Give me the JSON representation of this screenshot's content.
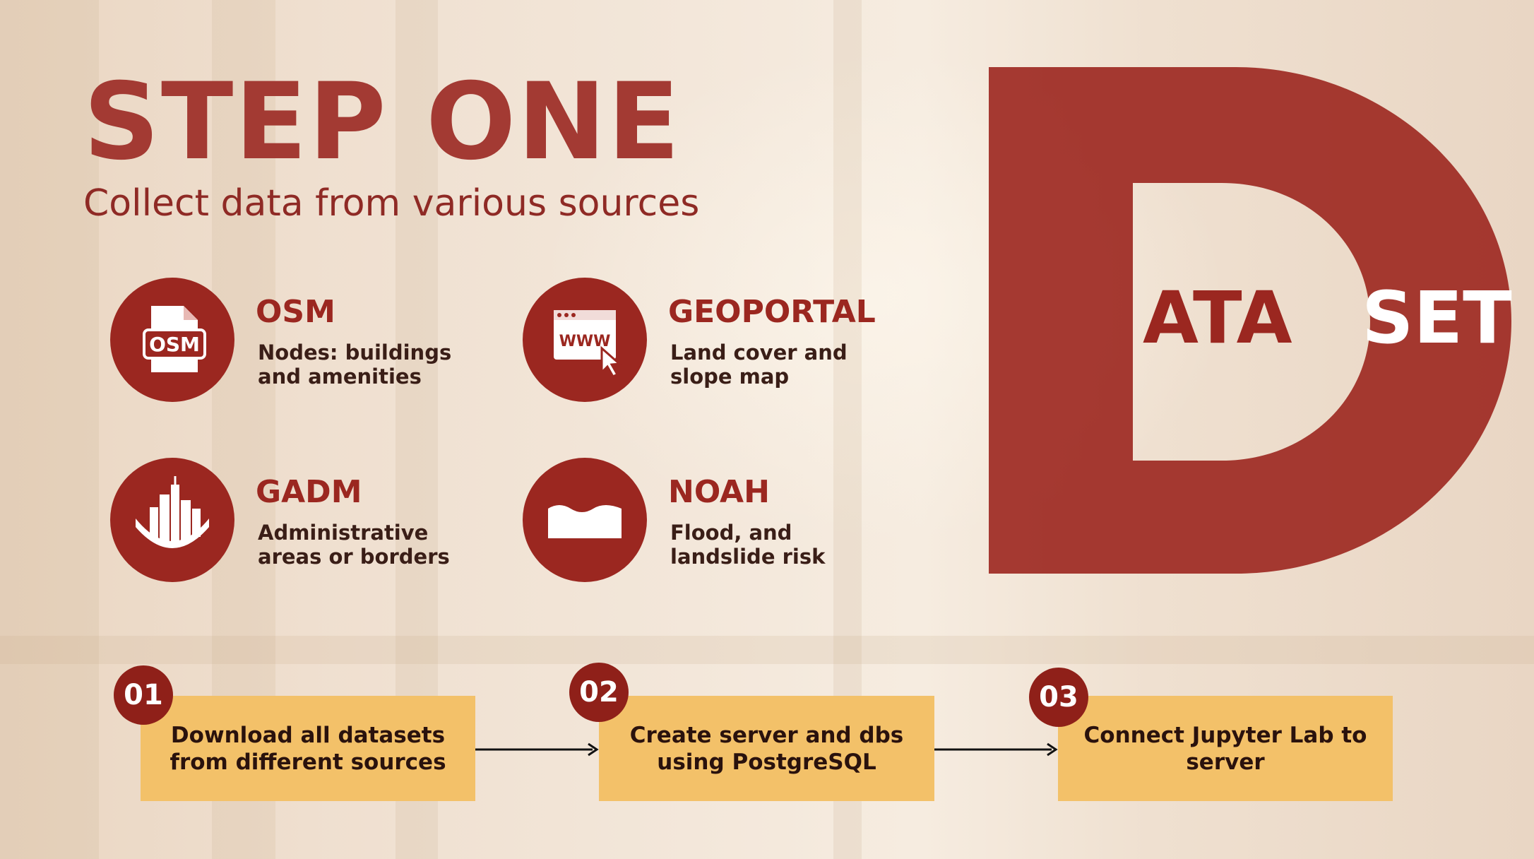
{
  "heading": {
    "title": "STEP ONE",
    "subtitle": "Collect data from various sources"
  },
  "sources": [
    {
      "name": "OSM",
      "description": "Nodes: buildings\nand amenities",
      "icon": "osm-file-icon",
      "icon_text": "OSM"
    },
    {
      "name": "GEOPORTAL",
      "description": "Land cover and\nslope map",
      "icon": "web-browser-cursor-icon",
      "icon_text": "WWW"
    },
    {
      "name": "GADM",
      "description": "Administrative\nareas or borders",
      "icon": "city-skyline-icon"
    },
    {
      "name": "NOAH",
      "description": "Flood, and\nlandslide risk",
      "icon": "wave-flood-icon"
    }
  ],
  "dataset_graphic": {
    "big_letter": "D",
    "left_word": "ATA",
    "right_word": "SET"
  },
  "steps": [
    {
      "number": "01",
      "label": "Download all datasets\nfrom different sources"
    },
    {
      "number": "02",
      "label": "Create server and dbs\nusing PostgreSQL"
    },
    {
      "number": "03",
      "label": "Connect Jupyter Lab to\nserver"
    }
  ],
  "colors": {
    "accent": "#9b2720",
    "step_box": "#f3c169",
    "background": "#f3e6d8"
  }
}
